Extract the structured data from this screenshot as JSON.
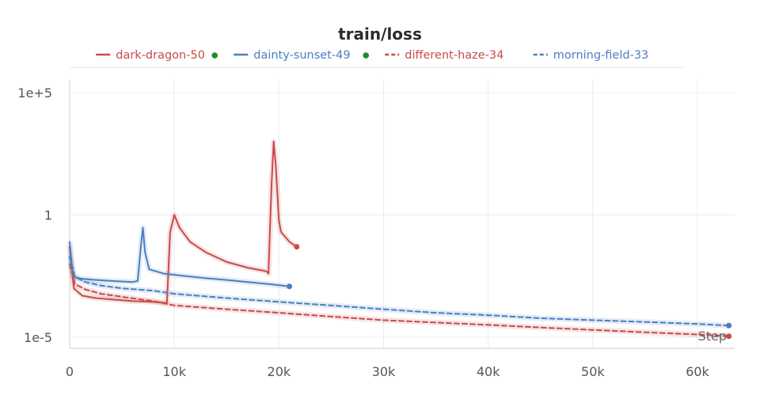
{
  "chart_data": {
    "type": "line",
    "title": "train/loss",
    "xlabel": "Step",
    "ylabel": "",
    "x_scale": "linear",
    "y_scale": "log",
    "xlim": [
      0,
      63500
    ],
    "ylim": [
      5e-06,
      1000000.0
    ],
    "x_ticks": [
      0,
      10000,
      20000,
      30000,
      40000,
      50000,
      60000
    ],
    "x_tick_labels": [
      "0",
      "10k",
      "20k",
      "30k",
      "40k",
      "50k",
      "60k"
    ],
    "y_ticks": [
      1e-05,
      1,
      100000
    ],
    "y_tick_labels": [
      "1e-5",
      "1",
      "1e+5"
    ],
    "grid": true,
    "legend_position": "top",
    "series": [
      {
        "name": "dark-dragon-50",
        "color": "#c94a4a",
        "dash": "solid",
        "status_dot": true,
        "status_color": "#1e8c2a",
        "end_marker": true,
        "x": [
          0,
          400,
          1200,
          2500,
          4000,
          6000,
          8000,
          9200,
          9300,
          9600,
          10000,
          10500,
          11500,
          13000,
          15000,
          17000,
          18800,
          19000,
          19300,
          19500,
          19700,
          20000,
          20200,
          21000,
          21700
        ],
        "y": [
          0.05,
          0.001,
          0.0005,
          0.0004,
          0.00035,
          0.0003,
          0.00028,
          0.00025,
          0.00026,
          0.2,
          1.0,
          0.3,
          0.08,
          0.03,
          0.012,
          0.007,
          0.005,
          0.004,
          20,
          1000,
          100,
          0.6,
          0.2,
          0.08,
          0.05
        ]
      },
      {
        "name": "dainty-sunset-49",
        "color": "#4a7fc1",
        "dash": "solid",
        "status_dot": true,
        "status_color": "#1e8c2a",
        "end_marker": true,
        "x": [
          0,
          300,
          1000,
          2500,
          4000,
          6000,
          6500,
          6800,
          7000,
          7200,
          7600,
          9000,
          11000,
          13000,
          15000,
          17000,
          19000,
          21000
        ],
        "y": [
          0.08,
          0.003,
          0.0025,
          0.0022,
          0.002,
          0.0018,
          0.002,
          0.05,
          0.3,
          0.03,
          0.006,
          0.004,
          0.0032,
          0.0026,
          0.0022,
          0.0018,
          0.0015,
          0.0012
        ]
      },
      {
        "name": "different-haze-34",
        "color": "#c94a4a",
        "dash": "dashed",
        "status_dot": false,
        "end_marker": true,
        "x": [
          0,
          500,
          1500,
          3000,
          5000,
          8000,
          10000,
          15000,
          20000,
          25000,
          30000,
          35000,
          40000,
          45000,
          50000,
          55000,
          60000,
          63000
        ],
        "y": [
          0.01,
          0.0015,
          0.0009,
          0.0006,
          0.00045,
          0.0003,
          0.0002,
          0.00014,
          0.0001,
          7e-05,
          5e-05,
          4e-05,
          3.2e-05,
          2.5e-05,
          2e-05,
          1.6e-05,
          1.3e-05,
          1.1e-05
        ]
      },
      {
        "name": "morning-field-33",
        "color": "#4a7fc1",
        "dash": "dashed",
        "status_dot": false,
        "end_marker": true,
        "x": [
          0,
          500,
          1500,
          3000,
          5000,
          8000,
          10000,
          15000,
          20000,
          25000,
          30000,
          35000,
          40000,
          45000,
          50000,
          55000,
          60000,
          63000
        ],
        "y": [
          0.02,
          0.003,
          0.0018,
          0.0013,
          0.001,
          0.0008,
          0.0006,
          0.0004,
          0.00028,
          0.0002,
          0.00014,
          0.0001,
          8e-05,
          6e-05,
          5e-05,
          4.2e-05,
          3.5e-05,
          3e-05
        ]
      }
    ]
  }
}
